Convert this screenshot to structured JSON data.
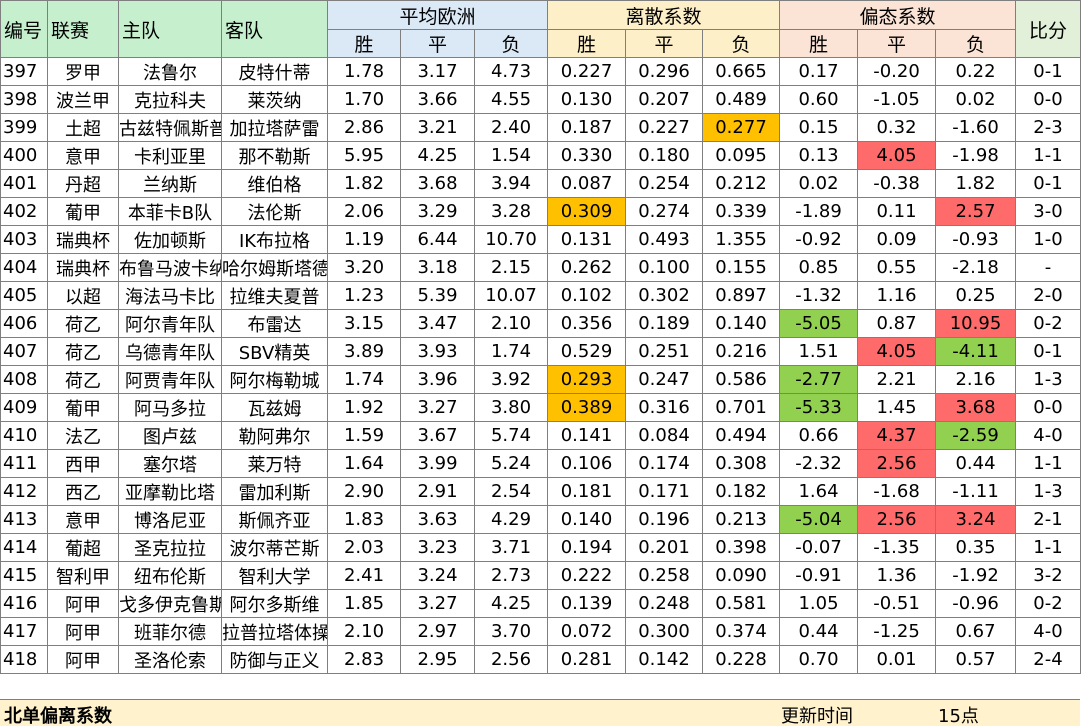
{
  "headers": {
    "no": "编号",
    "league": "联赛",
    "home": "主队",
    "away": "客队",
    "avg_odds": "平均欧洲",
    "dispersion": "离散系数",
    "skew": "偏态系数",
    "score": "比分",
    "win": "胜",
    "draw": "平",
    "loss": "负"
  },
  "highlight_colors": {
    "orange": "#ffc000",
    "red": "#ff6b6b",
    "green": "#92d050"
  },
  "rows": [
    {
      "no": "397",
      "league": "罗甲",
      "home": "法鲁尔",
      "away": "皮特什蒂",
      "avg": [
        "1.78",
        "3.17",
        "4.73"
      ],
      "disp": [
        "0.227",
        "0.296",
        "0.665"
      ],
      "skew": [
        "0.17",
        "-0.20",
        "0.22"
      ],
      "score": "0-1",
      "hl": {}
    },
    {
      "no": "398",
      "league": "波兰甲",
      "home": "克拉科夫",
      "away": "莱茨纳",
      "avg": [
        "1.70",
        "3.66",
        "4.55"
      ],
      "disp": [
        "0.130",
        "0.207",
        "0.489"
      ],
      "skew": [
        "0.60",
        "-1.05",
        "0.02"
      ],
      "score": "0-0",
      "hl": {}
    },
    {
      "no": "399",
      "league": "土超",
      "home": "古兹特佩斯普",
      "away": "加拉塔萨雷",
      "avg": [
        "2.86",
        "3.21",
        "2.40"
      ],
      "disp": [
        "0.187",
        "0.227",
        "0.277"
      ],
      "skew": [
        "0.15",
        "0.32",
        "-1.60"
      ],
      "score": "2-3",
      "hl": {
        "disp2": "orange"
      }
    },
    {
      "no": "400",
      "league": "意甲",
      "home": "卡利亚里",
      "away": "那不勒斯",
      "avg": [
        "5.95",
        "4.25",
        "1.54"
      ],
      "disp": [
        "0.330",
        "0.180",
        "0.095"
      ],
      "skew": [
        "0.13",
        "4.05",
        "-1.98"
      ],
      "score": "1-1",
      "hl": {
        "skew1": "red"
      }
    },
    {
      "no": "401",
      "league": "丹超",
      "home": "兰纳斯",
      "away": "维伯格",
      "avg": [
        "1.82",
        "3.68",
        "3.94"
      ],
      "disp": [
        "0.087",
        "0.254",
        "0.212"
      ],
      "skew": [
        "0.02",
        "-0.38",
        "1.82"
      ],
      "score": "0-1",
      "hl": {}
    },
    {
      "no": "402",
      "league": "葡甲",
      "home": "本菲卡B队",
      "away": "法伦斯",
      "avg": [
        "2.06",
        "3.29",
        "3.28"
      ],
      "disp": [
        "0.309",
        "0.274",
        "0.339"
      ],
      "skew": [
        "-1.89",
        "0.11",
        "2.57"
      ],
      "score": "3-0",
      "hl": {
        "disp0": "orange",
        "skew2": "red"
      }
    },
    {
      "no": "403",
      "league": "瑞典杯",
      "home": "佐加顿斯",
      "away": "IK布拉格",
      "avg": [
        "1.19",
        "6.44",
        "10.70"
      ],
      "disp": [
        "0.131",
        "0.493",
        "1.355"
      ],
      "skew": [
        "-0.92",
        "0.09",
        "-0.93"
      ],
      "score": "1-0",
      "hl": {}
    },
    {
      "no": "404",
      "league": "瑞典杯",
      "home": "布鲁马波卡纳",
      "away": "哈尔姆斯塔德",
      "avg": [
        "3.20",
        "3.18",
        "2.15"
      ],
      "disp": [
        "0.262",
        "0.100",
        "0.155"
      ],
      "skew": [
        "0.85",
        "0.55",
        "-2.18"
      ],
      "score": "-",
      "hl": {}
    },
    {
      "no": "405",
      "league": "以超",
      "home": "海法马卡比",
      "away": "拉维夫夏普",
      "avg": [
        "1.23",
        "5.39",
        "10.07"
      ],
      "disp": [
        "0.102",
        "0.302",
        "0.897"
      ],
      "skew": [
        "-1.32",
        "1.16",
        "0.25"
      ],
      "score": "2-0",
      "hl": {}
    },
    {
      "no": "406",
      "league": "荷乙",
      "home": "阿尔青年队",
      "away": "布雷达",
      "avg": [
        "3.15",
        "3.47",
        "2.10"
      ],
      "disp": [
        "0.356",
        "0.189",
        "0.140"
      ],
      "skew": [
        "-5.05",
        "0.87",
        "10.95"
      ],
      "score": "0-2",
      "hl": {
        "skew0": "green",
        "skew2": "red"
      }
    },
    {
      "no": "407",
      "league": "荷乙",
      "home": "乌德青年队",
      "away": "SBV精英",
      "avg": [
        "3.89",
        "3.93",
        "1.74"
      ],
      "disp": [
        "0.529",
        "0.251",
        "0.216"
      ],
      "skew": [
        "1.51",
        "4.05",
        "-4.11"
      ],
      "score": "0-1",
      "hl": {
        "skew1": "red",
        "skew2": "green"
      }
    },
    {
      "no": "408",
      "league": "荷乙",
      "home": "阿贾青年队",
      "away": "阿尔梅勒城",
      "avg": [
        "1.74",
        "3.96",
        "3.92"
      ],
      "disp": [
        "0.293",
        "0.247",
        "0.586"
      ],
      "skew": [
        "-2.77",
        "2.21",
        "2.16"
      ],
      "score": "1-3",
      "hl": {
        "disp0": "orange",
        "skew0": "green"
      }
    },
    {
      "no": "409",
      "league": "葡甲",
      "home": "阿马多拉",
      "away": "瓦兹姆",
      "avg": [
        "1.92",
        "3.27",
        "3.80"
      ],
      "disp": [
        "0.389",
        "0.316",
        "0.701"
      ],
      "skew": [
        "-5.33",
        "1.45",
        "3.68"
      ],
      "score": "0-0",
      "hl": {
        "disp0": "orange",
        "skew0": "green",
        "skew2": "red"
      }
    },
    {
      "no": "410",
      "league": "法乙",
      "home": "图卢兹",
      "away": "勒阿弗尔",
      "avg": [
        "1.59",
        "3.67",
        "5.74"
      ],
      "disp": [
        "0.141",
        "0.084",
        "0.494"
      ],
      "skew": [
        "0.66",
        "4.37",
        "-2.59"
      ],
      "score": "4-0",
      "hl": {
        "skew1": "red",
        "skew2": "green"
      }
    },
    {
      "no": "411",
      "league": "西甲",
      "home": "塞尔塔",
      "away": "莱万特",
      "avg": [
        "1.64",
        "3.99",
        "5.24"
      ],
      "disp": [
        "0.106",
        "0.174",
        "0.308"
      ],
      "skew": [
        "-2.32",
        "2.56",
        "0.44"
      ],
      "score": "1-1",
      "hl": {
        "skew1": "red"
      }
    },
    {
      "no": "412",
      "league": "西乙",
      "home": "亚摩勒比塔",
      "away": "雷加利斯",
      "avg": [
        "2.90",
        "2.91",
        "2.54"
      ],
      "disp": [
        "0.181",
        "0.171",
        "0.182"
      ],
      "skew": [
        "1.64",
        "-1.68",
        "-1.11"
      ],
      "score": "1-3",
      "hl": {}
    },
    {
      "no": "413",
      "league": "意甲",
      "home": "博洛尼亚",
      "away": "斯佩齐亚",
      "avg": [
        "1.83",
        "3.63",
        "4.29"
      ],
      "disp": [
        "0.140",
        "0.196",
        "0.213"
      ],
      "skew": [
        "-5.04",
        "2.56",
        "3.24"
      ],
      "score": "2-1",
      "hl": {
        "skew0": "green",
        "skew1": "red",
        "skew2": "red"
      }
    },
    {
      "no": "414",
      "league": "葡超",
      "home": "圣克拉拉",
      "away": "波尔蒂芒斯",
      "avg": [
        "2.03",
        "3.23",
        "3.71"
      ],
      "disp": [
        "0.194",
        "0.201",
        "0.398"
      ],
      "skew": [
        "-0.07",
        "-1.35",
        "0.35"
      ],
      "score": "1-1",
      "hl": {}
    },
    {
      "no": "415",
      "league": "智利甲",
      "home": "纽布伦斯",
      "away": "智利大学",
      "avg": [
        "2.41",
        "3.24",
        "2.73"
      ],
      "disp": [
        "0.222",
        "0.258",
        "0.090"
      ],
      "skew": [
        "-0.91",
        "1.36",
        "-1.92"
      ],
      "score": "3-2",
      "hl": {}
    },
    {
      "no": "416",
      "league": "阿甲",
      "home": "戈多伊克鲁斯",
      "away": "阿尔多斯维",
      "avg": [
        "1.85",
        "3.27",
        "4.25"
      ],
      "disp": [
        "0.139",
        "0.248",
        "0.581"
      ],
      "skew": [
        "1.05",
        "-0.51",
        "-0.96"
      ],
      "score": "0-2",
      "hl": {}
    },
    {
      "no": "417",
      "league": "阿甲",
      "home": "班菲尔德",
      "away": "拉普拉塔体操",
      "avg": [
        "2.10",
        "2.97",
        "3.70"
      ],
      "disp": [
        "0.072",
        "0.300",
        "0.374"
      ],
      "skew": [
        "0.44",
        "-1.25",
        "0.67"
      ],
      "score": "4-0",
      "hl": {}
    },
    {
      "no": "418",
      "league": "阿甲",
      "home": "圣洛伦索",
      "away": "防御与正义",
      "avg": [
        "2.83",
        "2.95",
        "2.56"
      ],
      "disp": [
        "0.281",
        "0.142",
        "0.228"
      ],
      "skew": [
        "0.70",
        "0.01",
        "0.57"
      ],
      "score": "2-4",
      "hl": {}
    }
  ],
  "footer": {
    "title": "北单偏离系数",
    "update_label": "更新时间",
    "update_value": "15点"
  }
}
